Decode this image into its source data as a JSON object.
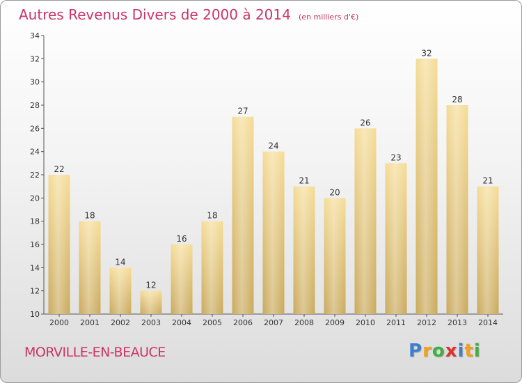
{
  "chart_data": {
    "type": "bar",
    "title": "Autres Revenus Divers de 2000 à 2014",
    "unit_note": "(en milliers d'€)",
    "categories": [
      "2000",
      "2001",
      "2002",
      "2003",
      "2004",
      "2005",
      "2006",
      "2007",
      "2008",
      "2009",
      "2010",
      "2011",
      "2012",
      "2013",
      "2014"
    ],
    "values": [
      22,
      18,
      14,
      12,
      16,
      18,
      27,
      24,
      21,
      20,
      26,
      23,
      32,
      28,
      21
    ],
    "ylim": [
      10,
      34
    ],
    "yticks": [
      10,
      12,
      14,
      16,
      18,
      20,
      22,
      24,
      26,
      28,
      30,
      32,
      34
    ],
    "grid": false,
    "bar_color": "#e8cc7a"
  },
  "location": "MORVILLE-EN-BEAUCE",
  "brand": {
    "letters": [
      "P",
      "r",
      "o",
      "x",
      "i",
      "t",
      "i"
    ],
    "colors": [
      "#3c7fd0",
      "#f0a020",
      "#3cb040",
      "#e03030",
      "#3c7fd0",
      "#f0a020",
      "#3cb040"
    ]
  }
}
